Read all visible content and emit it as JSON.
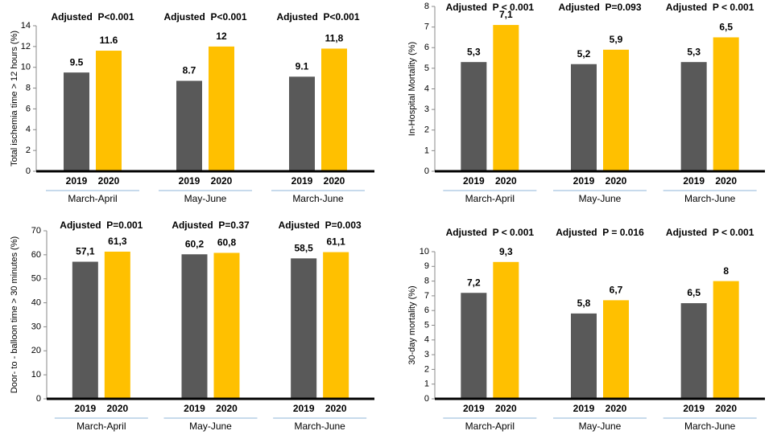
{
  "chart_data": [
    {
      "type": "bar",
      "y_label": "Total ischemia time > 12 hours (%)",
      "categories": [
        "March-April",
        "May-June",
        "March-June"
      ],
      "annotations": [
        "Adjusted  P<0.001",
        "Adjusted  P<0.001",
        "Adjusted  P<0.001"
      ],
      "series": [
        {
          "name": "2019",
          "color": "#595959",
          "values": [
            9.5,
            8.7,
            9.1
          ]
        },
        {
          "name": "2020",
          "color": "#ffc000",
          "values": [
            11.6,
            12,
            11.8
          ],
          "value_labels": [
            "11.6",
            "12",
            "11,8"
          ]
        }
      ],
      "ylim": [
        0,
        14
      ],
      "yticks": [
        0,
        2,
        4,
        6,
        8,
        10,
        12,
        14
      ]
    },
    {
      "type": "bar",
      "y_label": "In-Hospital Mortality (%)",
      "categories": [
        "March-April",
        "May-June",
        "March-June"
      ],
      "annotations": [
        "Adjusted  P < 0.001",
        "Adjusted  P=0.093",
        "Adjusted  P < 0.001"
      ],
      "series": [
        {
          "name": "2019",
          "color": "#595959",
          "values": [
            5.3,
            5.2,
            5.3
          ],
          "value_labels": [
            "5,3",
            "5,2",
            "5,3"
          ]
        },
        {
          "name": "2020",
          "color": "#ffc000",
          "values": [
            7.1,
            5.9,
            6.5
          ],
          "value_labels": [
            "7,1",
            "5,9",
            "6,5"
          ]
        }
      ],
      "ylim": [
        0,
        8
      ],
      "yticks": [
        0,
        1,
        2,
        3,
        4,
        5,
        6,
        7,
        8
      ]
    },
    {
      "type": "bar",
      "y_label": "Door- to - balloon  time > 30 minutes (%)",
      "categories": [
        "March-April",
        "May-June",
        "March-June"
      ],
      "annotations": [
        "Adjusted  P=0.001",
        "Adjusted  P=0.37",
        "Adjusted  P=0.003"
      ],
      "series": [
        {
          "name": "2019",
          "color": "#595959",
          "values": [
            57.1,
            60.2,
            58.5
          ],
          "value_labels": [
            "57,1",
            "60,2",
            "58,5"
          ]
        },
        {
          "name": "2020",
          "color": "#ffc000",
          "values": [
            61.3,
            60.8,
            61.1
          ],
          "value_labels": [
            "61,3",
            "60,8",
            "61,1"
          ]
        }
      ],
      "ylim": [
        0,
        70
      ],
      "yticks": [
        0,
        10,
        20,
        30,
        40,
        50,
        60,
        70
      ]
    },
    {
      "type": "bar",
      "y_label": "30-day mortality (%)",
      "categories": [
        "March-April",
        "May-June",
        "March-June"
      ],
      "annotations": [
        "Adjusted  P < 0.001",
        "Adjusted  P = 0.016",
        "Adjusted  P < 0.001"
      ],
      "series": [
        {
          "name": "2019",
          "color": "#595959",
          "values": [
            7.2,
            5.8,
            6.5
          ],
          "value_labels": [
            "7,2",
            "5,8",
            "6,5"
          ]
        },
        {
          "name": "2020",
          "color": "#ffc000",
          "values": [
            9.3,
            6.7,
            8
          ],
          "value_labels": [
            "9,3",
            "6,7",
            "8"
          ]
        }
      ],
      "ylim": [
        0,
        10
      ],
      "yticks": [
        0,
        1,
        2,
        3,
        4,
        5,
        6,
        7,
        8,
        9,
        10
      ]
    }
  ]
}
